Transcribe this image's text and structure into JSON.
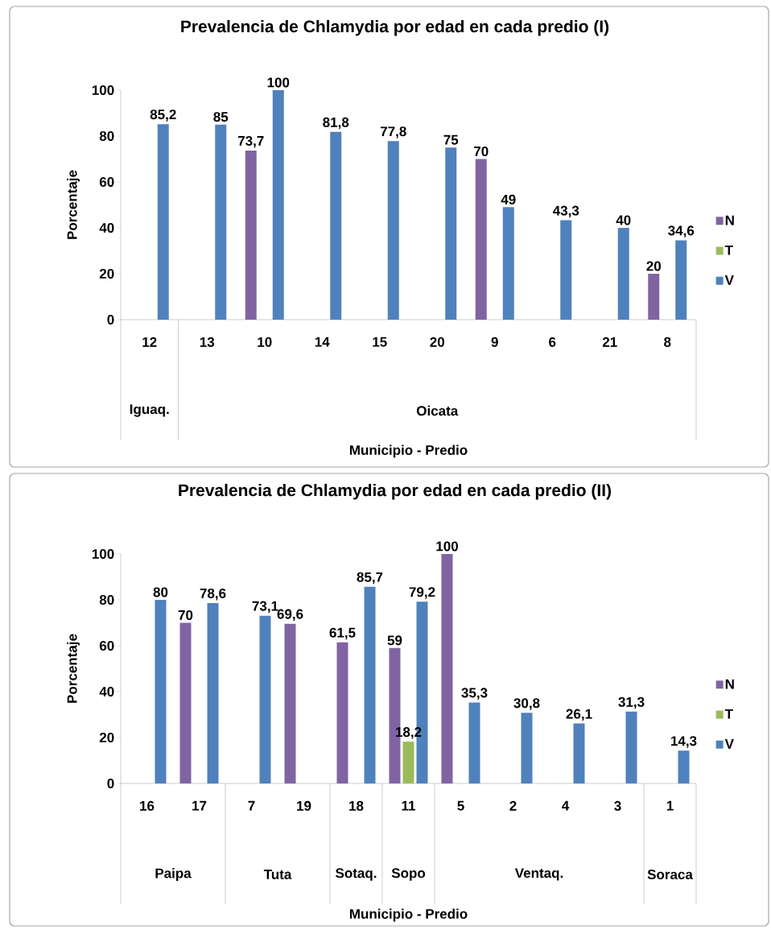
{
  "chart_data": [
    {
      "type": "bar",
      "title": "Prevalencia de Chlamydia por edad en cada predio (I)",
      "xlabel": "Municipio - Predio",
      "ylabel": "Porcentaje",
      "categories": [
        "12",
        "13",
        "10",
        "14",
        "15",
        "20",
        "9",
        "6",
        "21",
        "8"
      ],
      "series": [
        {
          "name": "N",
          "color": "#8064a2",
          "values": [
            null,
            null,
            73.7,
            null,
            null,
            null,
            70,
            null,
            null,
            20
          ],
          "value_labels": [
            null,
            null,
            "73,7",
            null,
            null,
            null,
            "70",
            null,
            null,
            "20"
          ]
        },
        {
          "name": "T",
          "color": "#9bbb59",
          "values": [
            null,
            null,
            null,
            null,
            null,
            null,
            null,
            null,
            null,
            null
          ]
        },
        {
          "name": "V",
          "color": "#4f81bd",
          "values": [
            85.2,
            85,
            100,
            81.8,
            77.8,
            75,
            49,
            43.3,
            40,
            34.6
          ],
          "value_labels": [
            "85,2",
            "85",
            "100",
            "81,8",
            "77,8",
            "75",
            "49",
            "43,3",
            "40",
            "34,6"
          ]
        }
      ],
      "ylim": [
        0,
        100
      ],
      "yticks": [
        0,
        20,
        40,
        60,
        80,
        100
      ],
      "legend": "right",
      "annotations": [
        "Iguaq.",
        "Oicata"
      ]
    },
    {
      "type": "bar",
      "title": "Prevalencia de Chlamydia por edad en cada predio (II)",
      "xlabel": "Municipio - Predio",
      "ylabel": "Porcentaje",
      "categories": [
        "16",
        "17",
        "7",
        "19",
        "18",
        "11",
        "5",
        "2",
        "4",
        "3",
        "1"
      ],
      "series": [
        {
          "name": "N",
          "color": "#8064a2",
          "values": [
            null,
            70,
            null,
            69.6,
            61.5,
            59,
            100,
            null,
            null,
            null,
            null
          ],
          "value_labels": [
            null,
            "70",
            null,
            "69,6",
            "61,5",
            "59",
            "100",
            null,
            null,
            null,
            null
          ]
        },
        {
          "name": "T",
          "color": "#9bbb59",
          "values": [
            null,
            null,
            null,
            null,
            null,
            18.2,
            null,
            null,
            null,
            null,
            null
          ],
          "value_labels": [
            null,
            null,
            null,
            null,
            null,
            "18,2",
            null,
            null,
            null,
            null,
            null
          ]
        },
        {
          "name": "V",
          "color": "#4f81bd",
          "values": [
            80,
            78.6,
            73.1,
            null,
            85.7,
            79.2,
            35.3,
            30.8,
            26.1,
            31.3,
            14.3
          ],
          "value_labels": [
            "80",
            "78,6",
            "73,1",
            null,
            "85,7",
            "79,2",
            "35,3",
            "30,8",
            "26,1",
            "31,3",
            "14,3"
          ]
        }
      ],
      "ylim": [
        0,
        100
      ],
      "yticks": [
        0,
        20,
        40,
        60,
        80,
        100
      ],
      "legend": "right",
      "annotations": [
        "Paipa",
        "Tuta",
        "Sotaq.",
        "Sopo",
        "Ventaq.",
        "Soraca"
      ]
    }
  ]
}
